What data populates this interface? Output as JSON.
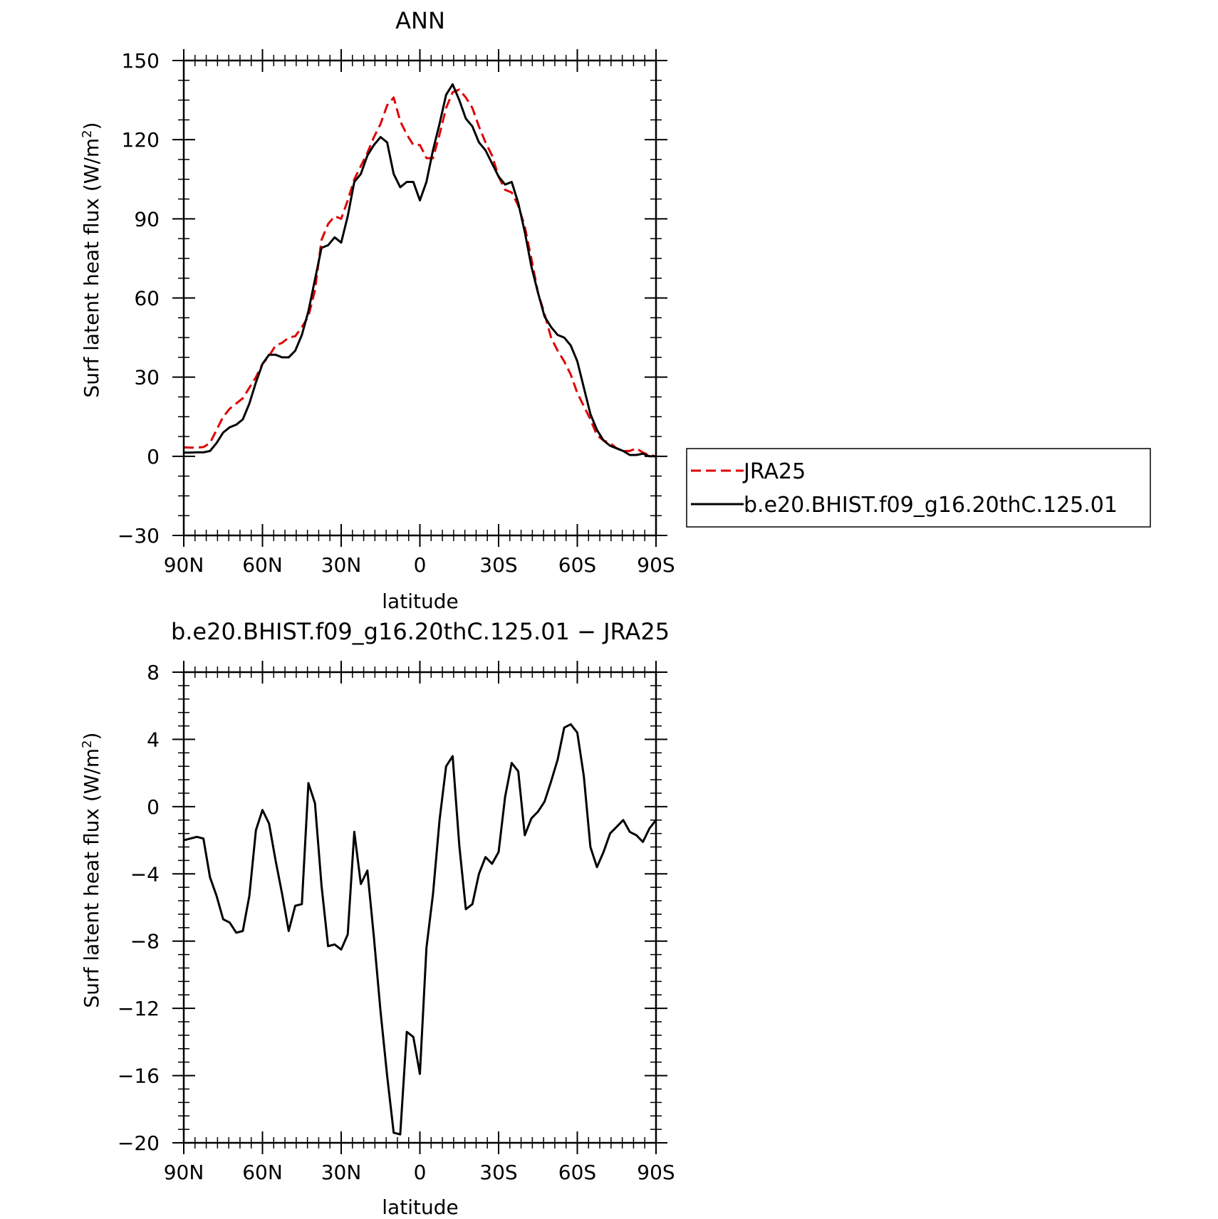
{
  "chart_data": [
    {
      "type": "line",
      "title": "ANN",
      "xlabel": "latitude",
      "ylabel": "Surf latent heat flux (W/m²)",
      "ylabel_prefix": "Surf latent heat flux (W/m",
      "ylabel_sup": "2",
      "ylabel_suffix": ")",
      "xlim": [
        90,
        -90
      ],
      "ylim": [
        -30,
        150
      ],
      "yticks": [
        -30,
        0,
        30,
        60,
        90,
        120,
        150
      ],
      "ytick_labels": [
        "−30",
        "0",
        "30",
        "60",
        "90",
        "120",
        "150"
      ],
      "xticks": [
        90,
        60,
        30,
        0,
        -30,
        -60,
        -90
      ],
      "xtick_labels": [
        "90N",
        "60N",
        "30N",
        "0",
        "30S",
        "60S",
        "90S"
      ],
      "legend_position": "right",
      "series": [
        {
          "name": "JRA25",
          "color": "#e00000",
          "dash": true,
          "x": [
            90,
            87.5,
            85,
            82.5,
            80,
            77.5,
            75,
            72.5,
            70,
            67.5,
            65,
            62.5,
            60,
            57.5,
            55,
            52.5,
            50,
            47.5,
            45,
            42.5,
            40,
            37.5,
            35,
            32.5,
            30,
            27.5,
            25,
            22.5,
            20,
            17.5,
            15,
            12.5,
            10,
            7.5,
            5,
            2.5,
            0,
            -2.5,
            -5,
            -7.5,
            -10,
            -12.5,
            -15,
            -17.5,
            -20,
            -22.5,
            -25,
            -27.5,
            -30,
            -32.5,
            -35,
            -37.5,
            -40,
            -42.5,
            -45,
            -47.5,
            -50,
            -52.5,
            -55,
            -57.5,
            -60,
            -62.5,
            -65,
            -67.5,
            -70,
            -72.5,
            -75,
            -77.5,
            -80,
            -82.5,
            -85,
            -87.5,
            -90
          ],
          "values": [
            3.4,
            3.3,
            3.3,
            3.5,
            5,
            10,
            15,
            18,
            20,
            22,
            26,
            30,
            35,
            38,
            42,
            43,
            45,
            45.5,
            49,
            53,
            63,
            82,
            88,
            91,
            90,
            97,
            105,
            110,
            115,
            121,
            126,
            133,
            136,
            127,
            122,
            118,
            118,
            113,
            113,
            122,
            132,
            138,
            139,
            136,
            132,
            125,
            119,
            114,
            106,
            101,
            100,
            95,
            87,
            75,
            62,
            54,
            45,
            40,
            36,
            31,
            24,
            19,
            14,
            8,
            6,
            5,
            3,
            2,
            2,
            3,
            1.4,
            0.5,
            0
          ]
        },
        {
          "name": "b.e20.BHIST.f09_g16.20thC.125.01",
          "color": "#000000",
          "dash": false,
          "x": [
            90,
            87.5,
            85,
            82.5,
            80,
            77.5,
            75,
            72.5,
            70,
            67.5,
            65,
            62.5,
            60,
            57.5,
            55,
            52.5,
            50,
            47.5,
            45,
            42.5,
            40,
            37.5,
            35,
            32.5,
            30,
            27.5,
            25,
            22.5,
            20,
            17.5,
            15,
            12.5,
            10,
            7.5,
            5,
            2.5,
            0,
            -2.5,
            -5,
            -7.5,
            -10,
            -12.5,
            -15,
            -17.5,
            -20,
            -22.5,
            -25,
            -27.5,
            -30,
            -32.5,
            -35,
            -37.5,
            -40,
            -42.5,
            -45,
            -47.5,
            -50,
            -52.5,
            -55,
            -57.5,
            -60,
            -62.5,
            -65,
            -67.5,
            -70,
            -72.5,
            -75,
            -77.5,
            -80,
            -82.5,
            -85,
            -87.5,
            -90
          ],
          "values": [
            1.4,
            1.4,
            1.5,
            1.5,
            2,
            5,
            9,
            11,
            12,
            14,
            20,
            28,
            35,
            38.5,
            38.5,
            37.5,
            37.5,
            40,
            46,
            55,
            67,
            79,
            80,
            83,
            81,
            91,
            104,
            107,
            114,
            118,
            121,
            119,
            107,
            102,
            104,
            104,
            97,
            104,
            116,
            126,
            137,
            141,
            135,
            128,
            125,
            119,
            116,
            111,
            106,
            103,
            104,
            96,
            85,
            72,
            62,
            53,
            49,
            46,
            45,
            42,
            36,
            26,
            16,
            10,
            6,
            4,
            3,
            2,
            0.5,
            0.5,
            1,
            0,
            0
          ]
        }
      ]
    },
    {
      "type": "line",
      "title": "b.e20.BHIST.f09_g16.20thC.125.01 − JRA25",
      "xlabel": "latitude",
      "ylabel": "Surf latent heat flux (W/m²)",
      "ylabel_prefix": "Surf latent heat flux (W/m",
      "ylabel_sup": "2",
      "ylabel_suffix": ")",
      "xlim": [
        90,
        -90
      ],
      "ylim": [
        -20,
        8
      ],
      "yticks": [
        -20,
        -16,
        -12,
        -8,
        -4,
        0,
        4,
        8
      ],
      "ytick_labels": [
        "−20",
        "−16",
        "−12",
        "−8",
        "−4",
        "0",
        "4",
        "8"
      ],
      "xticks": [
        90,
        60,
        30,
        0,
        -30,
        -60,
        -90
      ],
      "xtick_labels": [
        "90N",
        "60N",
        "30N",
        "0",
        "30S",
        "60S",
        "90S"
      ],
      "series": [
        {
          "color": "#000000",
          "dash": false,
          "x": [
            90,
            87.5,
            85,
            82.5,
            80,
            77.5,
            75,
            72.5,
            70,
            67.5,
            65,
            62.5,
            60,
            57.5,
            55,
            52.5,
            50,
            47.5,
            45,
            42.5,
            40,
            37.5,
            35,
            32.5,
            30,
            27.5,
            25,
            22.5,
            20,
            17.5,
            15,
            12.5,
            10,
            7.5,
            5,
            2.5,
            0,
            -2.5,
            -5,
            -7.5,
            -10,
            -12.5,
            -15,
            -17.5,
            -20,
            -22.5,
            -25,
            -27.5,
            -30,
            -32.5,
            -35,
            -37.5,
            -40,
            -42.5,
            -45,
            -47.5,
            -50,
            -52.5,
            -55,
            -57.5,
            -60,
            -62.5,
            -65,
            -67.5,
            -70,
            -72.5,
            -75,
            -77.5,
            -80,
            -82.5,
            -85,
            -87.5,
            -90
          ],
          "values": [
            -2,
            -1.9,
            -1.8,
            -1.9,
            -4.2,
            -5.3,
            -6.7,
            -6.9,
            -7.5,
            -7.4,
            -5.3,
            -1.4,
            -0.2,
            -1,
            -3.2,
            -5.2,
            -7.4,
            -5.9,
            -5.8,
            1.4,
            0.2,
            -4.7,
            -8.3,
            -8.2,
            -8.5,
            -7.6,
            -1.5,
            -4.6,
            -3.8,
            -7.8,
            -12.2,
            -16,
            -19.4,
            -19.5,
            -13.4,
            -13.7,
            -15.9,
            -8.4,
            -5.2,
            -0.8,
            2.4,
            3,
            -2.3,
            -6.1,
            -5.8,
            -4,
            -3,
            -3.4,
            -2.7,
            0.6,
            2.6,
            2.1,
            -1.7,
            -0.7,
            -0.3,
            0.3,
            1.5,
            2.8,
            4.7,
            4.9,
            4.4,
            1.8,
            -2.4,
            -3.6,
            -2.7,
            -1.6,
            -1.2,
            -0.8,
            -1.5,
            -1.7,
            -2.1,
            -1.3,
            -0.8
          ]
        }
      ]
    }
  ]
}
